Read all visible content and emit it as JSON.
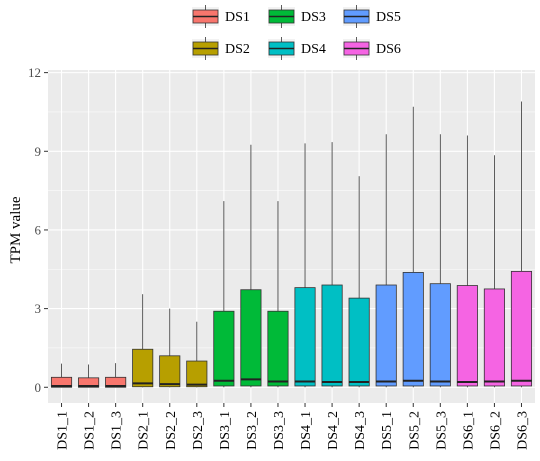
{
  "chart_data": {
    "type": "box",
    "xlabel": "",
    "ylabel": "TPM value",
    "ylim": [
      -0.6,
      12.1
    ],
    "yticks": [
      0,
      3,
      6,
      9,
      12
    ],
    "ytick_labels": [
      "0",
      "3",
      "6",
      "9",
      "12"
    ],
    "grid": true,
    "legend_position": "top",
    "legend": [
      {
        "name": "DS1",
        "color": "#F8766D"
      },
      {
        "name": "DS2",
        "color": "#B79F00"
      },
      {
        "name": "DS3",
        "color": "#00BA38"
      },
      {
        "name": "DS4",
        "color": "#00BFC4"
      },
      {
        "name": "DS5",
        "color": "#619CFF"
      },
      {
        "name": "DS6",
        "color": "#F564E3"
      }
    ],
    "categories": [
      "DS1_1",
      "DS1_2",
      "DS1_3",
      "DS2_1",
      "DS2_2",
      "DS2_3",
      "DS3_1",
      "DS3_2",
      "DS3_3",
      "DS4_1",
      "DS4_2",
      "DS4_3",
      "DS5_1",
      "DS5_2",
      "DS5_3",
      "DS6_1",
      "DS6_2",
      "DS6_3"
    ],
    "boxes": [
      {
        "label": "DS1_1",
        "group": "DS1",
        "min": 0,
        "q1": 0,
        "median": 0.05,
        "q3": 0.38,
        "max": 0.9
      },
      {
        "label": "DS1_2",
        "group": "DS1",
        "min": 0,
        "q1": 0,
        "median": 0.05,
        "q3": 0.36,
        "max": 0.87
      },
      {
        "label": "DS1_3",
        "group": "DS1",
        "min": 0,
        "q1": 0,
        "median": 0.05,
        "q3": 0.38,
        "max": 0.92
      },
      {
        "label": "DS2_1",
        "group": "DS2",
        "min": 0,
        "q1": 0.02,
        "median": 0.15,
        "q3": 1.45,
        "max": 3.55
      },
      {
        "label": "DS2_2",
        "group": "DS2",
        "min": 0,
        "q1": 0.02,
        "median": 0.12,
        "q3": 1.2,
        "max": 3.0
      },
      {
        "label": "DS2_3",
        "group": "DS2",
        "min": 0,
        "q1": 0.02,
        "median": 0.1,
        "q3": 1.0,
        "max": 2.5
      },
      {
        "label": "DS3_1",
        "group": "DS3",
        "min": 0,
        "q1": 0.05,
        "median": 0.25,
        "q3": 2.9,
        "max": 7.1
      },
      {
        "label": "DS3_2",
        "group": "DS3",
        "min": 0,
        "q1": 0.05,
        "median": 0.3,
        "q3": 3.72,
        "max": 9.25
      },
      {
        "label": "DS3_3",
        "group": "DS3",
        "min": 0,
        "q1": 0.05,
        "median": 0.22,
        "q3": 2.9,
        "max": 7.1
      },
      {
        "label": "DS4_1",
        "group": "DS4",
        "min": 0,
        "q1": 0.05,
        "median": 0.22,
        "q3": 3.8,
        "max": 9.3
      },
      {
        "label": "DS4_2",
        "group": "DS4",
        "min": 0,
        "q1": 0.05,
        "median": 0.2,
        "q3": 3.9,
        "max": 9.35
      },
      {
        "label": "DS4_3",
        "group": "DS4",
        "min": 0,
        "q1": 0.05,
        "median": 0.2,
        "q3": 3.4,
        "max": 8.05
      },
      {
        "label": "DS5_1",
        "group": "DS5",
        "min": 0,
        "q1": 0.05,
        "median": 0.22,
        "q3": 3.9,
        "max": 9.65
      },
      {
        "label": "DS5_2",
        "group": "DS5",
        "min": 0,
        "q1": 0.05,
        "median": 0.25,
        "q3": 4.38,
        "max": 10.7
      },
      {
        "label": "DS5_3",
        "group": "DS5",
        "min": 0,
        "q1": 0.05,
        "median": 0.22,
        "q3": 3.95,
        "max": 9.65
      },
      {
        "label": "DS6_1",
        "group": "DS6",
        "min": 0,
        "q1": 0.05,
        "median": 0.2,
        "q3": 3.88,
        "max": 9.6
      },
      {
        "label": "DS6_2",
        "group": "DS6",
        "min": 0,
        "q1": 0.05,
        "median": 0.22,
        "q3": 3.75,
        "max": 8.85
      },
      {
        "label": "DS6_3",
        "group": "DS6",
        "min": 0,
        "q1": 0.05,
        "median": 0.25,
        "q3": 4.42,
        "max": 10.9
      }
    ]
  }
}
